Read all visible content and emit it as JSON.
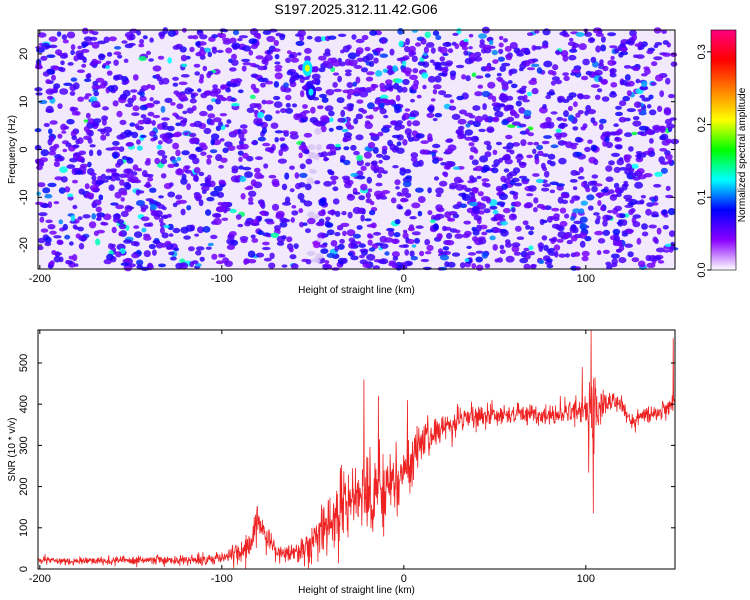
{
  "title": "S197.2025.312.11.42.G06",
  "chart_data": [
    {
      "type": "heatmap",
      "title": "S197.2025.312.11.42.G06",
      "xlabel": "Height of straight line (km)",
      "ylabel": "Frequency (Hz)",
      "xlim": [
        -201,
        149
      ],
      "ylim": [
        -25,
        25
      ],
      "xticks": [
        -200,
        -100,
        0,
        100
      ],
      "yticks": [
        -20,
        -10,
        0,
        10,
        20
      ],
      "colorbar": {
        "label": "Normalized spectral amplitude",
        "range": [
          0,
          0.33
        ],
        "ticks": [
          0,
          0.1,
          0.2,
          0.3
        ],
        "colormap": [
          "#ffffff",
          "#8b00ff",
          "#0000ff",
          "#00ffff",
          "#00ff00",
          "#ffff00",
          "#ff8000",
          "#ff0000",
          "#ff0080"
        ]
      },
      "background_level": 0.02,
      "hotspots": [
        {
          "x": -53,
          "y": 17,
          "value": 0.2
        },
        {
          "x": -51,
          "y": 12,
          "value": 0.12
        }
      ],
      "low_amplitude_band": {
        "x": -49,
        "y_range": [
          -25,
          5
        ]
      }
    },
    {
      "type": "line",
      "xlabel": "Height of straight line (km)",
      "ylabel": "SNR (10 * v/v)",
      "xlim": [
        -201,
        149
      ],
      "ylim": [
        0,
        580
      ],
      "xticks": [
        -200,
        -100,
        0,
        100
      ],
      "yticks": [
        0,
        100,
        200,
        300,
        400,
        500
      ],
      "series": [
        {
          "name": "SNR",
          "color": "#ee2222",
          "envelope": {
            "x": [
              -201,
              -160,
              -120,
              -100,
              -90,
              -85,
              -80,
              -78,
              -75,
              -70,
              -60,
              -50,
              -40,
              -30,
              -20,
              -10,
              0,
              10,
              20,
              30,
              40,
              50,
              60,
              70,
              80,
              90,
              100,
              103,
              105,
              110,
              115,
              120,
              125,
              130,
              140,
              149
            ],
            "mean": [
              20,
              20,
              22,
              28,
              40,
              55,
              115,
              110,
              80,
              40,
              40,
              60,
              120,
              170,
              180,
              200,
              240,
              300,
              340,
              360,
              370,
              375,
              375,
              375,
              375,
              380,
              385,
              380,
              385,
              400,
              410,
              395,
              355,
              370,
              380,
              400
            ],
            "spread": [
              8,
              8,
              10,
              14,
              20,
              28,
              45,
              40,
              30,
              18,
              22,
              45,
              70,
              80,
              85,
              80,
              60,
              40,
              30,
              25,
              22,
              20,
              20,
              20,
              22,
              25,
              40,
              120,
              60,
              25,
              20,
              18,
              15,
              18,
              20,
              30
            ]
          },
          "spikes": [
            {
              "x": -22,
              "y": 460
            },
            {
              "x": -14,
              "y": 420
            },
            {
              "x": 2,
              "y": 410
            },
            {
              "x": 98,
              "y": 490
            },
            {
              "x": 103,
              "y": 580
            },
            {
              "x": 104,
              "y": 135
            },
            {
              "x": 148,
              "y": 560
            }
          ]
        }
      ]
    }
  ]
}
